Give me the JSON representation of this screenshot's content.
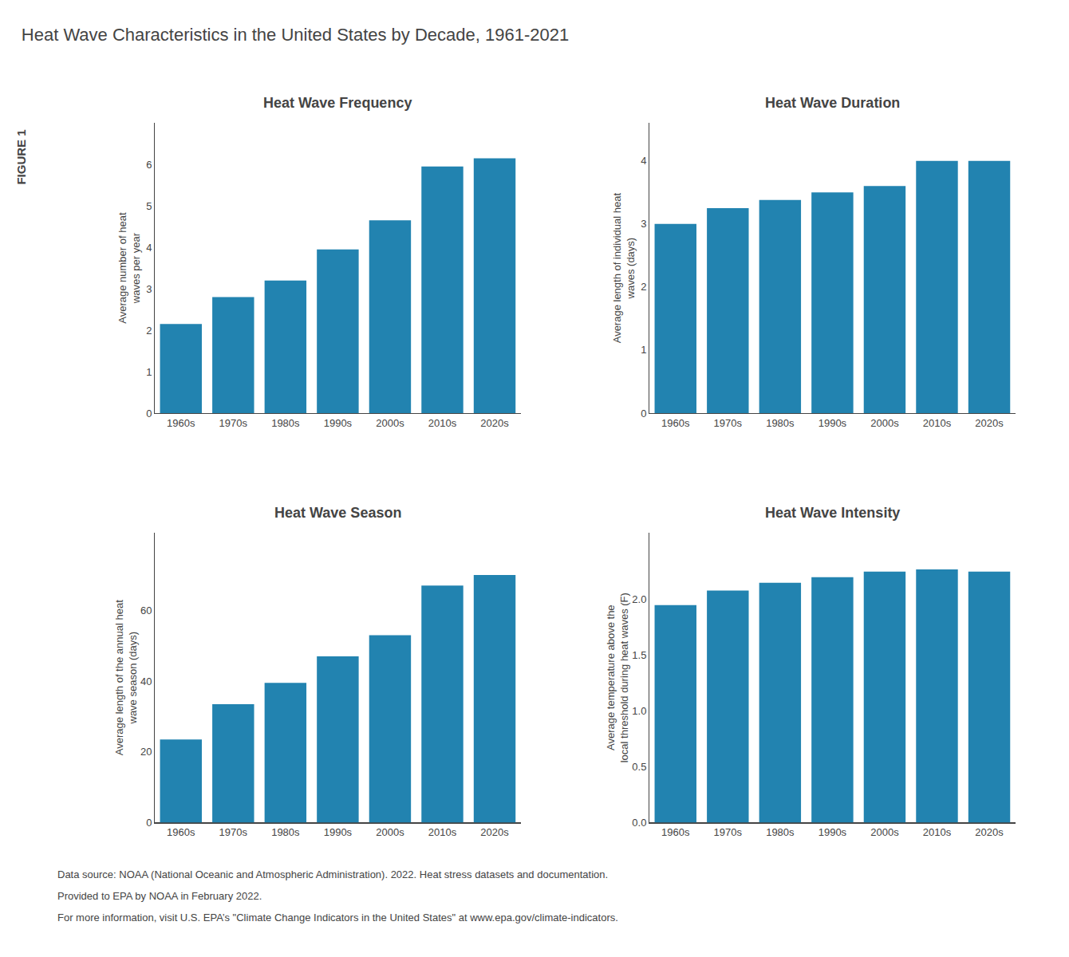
{
  "title": "Heat Wave Characteristics in the United States by Decade, 1961-2021",
  "annotations": [
    "FIGURE 1",
    "Data source: NOAA (National Oceanic and Atmospheric Administration). 2022. Heat stress datasets and documentation.",
    "Provided to EPA by NOAA in February 2022.",
    "For more information, visit U.S. EPA’s \"Climate Change Indicators in the United States\" at www.epa.gov/climate-indicators."
  ],
  "chart_data": [
    {
      "type": "bar",
      "title": "Heat Wave Frequency",
      "ylabel": "Average number of heat\nwaves per year",
      "categories": [
        "1960s",
        "1970s",
        "1980s",
        "1990s",
        "2000s",
        "2010s",
        "2020s"
      ],
      "values": [
        2.15,
        2.8,
        3.2,
        3.95,
        4.65,
        5.95,
        6.15
      ],
      "color": "#2283b0",
      "ylim": [
        0,
        7
      ],
      "yticks": [
        0,
        1,
        2,
        3,
        4,
        5,
        6
      ],
      "grid": false
    },
    {
      "type": "bar",
      "title": "Heat Wave Duration",
      "ylabel": "Average length of individual heat\nwaves (days)",
      "categories": [
        "1960s",
        "1970s",
        "1980s",
        "1990s",
        "2000s",
        "2010s",
        "2020s"
      ],
      "values": [
        3.0,
        3.25,
        3.38,
        3.5,
        3.6,
        4.0,
        4.0
      ],
      "color": "#2283b0",
      "ylim": [
        0,
        4.6
      ],
      "yticks": [
        0,
        1,
        2,
        3,
        4
      ],
      "grid": false
    },
    {
      "type": "bar",
      "title": "Heat Wave Season",
      "ylabel": "Average length of the annual heat\nwave season (days)",
      "categories": [
        "1960s",
        "1970s",
        "1980s",
        "1990s",
        "2000s",
        "2010s",
        "2020s"
      ],
      "values": [
        23.5,
        33.5,
        39.5,
        47.0,
        53.0,
        67.0,
        70.0
      ],
      "color": "#2283b0",
      "ylim": [
        0,
        82
      ],
      "yticks": [
        0,
        20,
        40,
        60
      ],
      "grid": false
    },
    {
      "type": "bar",
      "title": "Heat Wave Intensity",
      "ylabel": "Average temperature above the\nlocal threshold during heat waves (F)",
      "categories": [
        "1960s",
        "1970s",
        "1980s",
        "1990s",
        "2000s",
        "2010s",
        "2020s"
      ],
      "values": [
        1.95,
        2.08,
        2.15,
        2.2,
        2.25,
        2.27,
        2.25
      ],
      "color": "#2283b0",
      "ylim": [
        0,
        2.6
      ],
      "yticks": [
        {
          "value": 0,
          "label": "0.0"
        },
        0.5,
        {
          "value": 1.0,
          "label": "1.0"
        },
        1.5,
        {
          "value": 2.0,
          "label": "2.0"
        }
      ],
      "grid": false
    }
  ]
}
